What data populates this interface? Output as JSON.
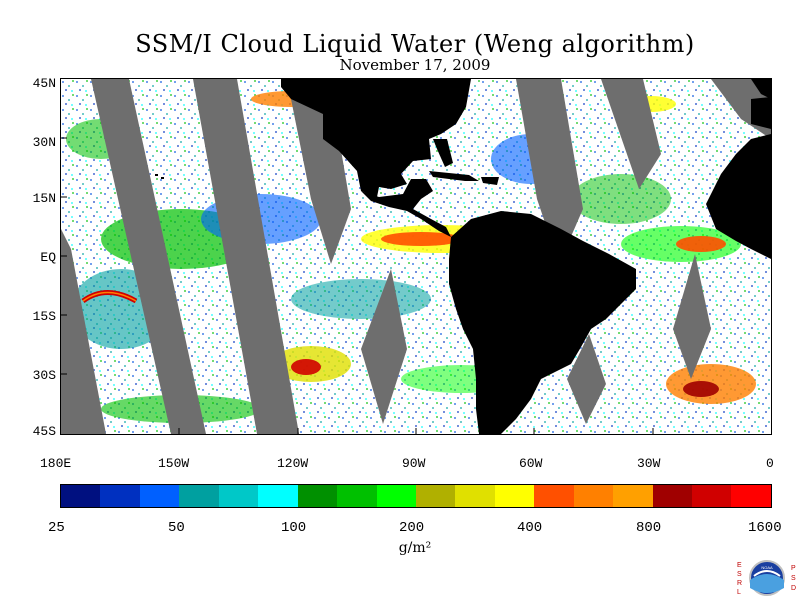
{
  "title": "SSM/I Cloud Liquid Water (Weng algorithm)",
  "date": "November 17, 2009",
  "lat_labels": [
    "45N",
    "30N",
    "15N",
    "EQ",
    "15S",
    "30S",
    "45S"
  ],
  "lon_labels": [
    "180E",
    "150W",
    "120W",
    "90W",
    "60W",
    "30W",
    "0"
  ],
  "colorbar": {
    "colors": [
      "#001080",
      "#0030c0",
      "#0060ff",
      "#00a0a0",
      "#00c8c8",
      "#00ffff",
      "#009000",
      "#00c000",
      "#00ff00",
      "#b0b000",
      "#e0e000",
      "#ffff00",
      "#ff5000",
      "#ff8000",
      "#ffa000",
      "#a00000",
      "#d00000",
      "#ff0000"
    ],
    "labels": [
      "25",
      "50",
      "100",
      "200",
      "400",
      "800",
      "1600"
    ]
  },
  "units": "g/m²",
  "logo": {
    "left_letters": [
      "E",
      "S",
      "R",
      "L"
    ],
    "right_letters": [
      "P",
      "S",
      "D"
    ],
    "center_text": "NOAA"
  },
  "map_colors": {
    "land": "#000000",
    "no_data": "#6e6e6e",
    "ocean_clear": "#ffffff"
  }
}
